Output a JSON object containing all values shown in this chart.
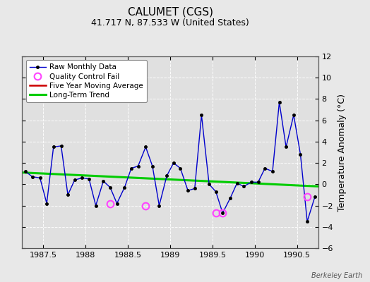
{
  "title": "CALUMET (CGS)",
  "subtitle": "41.717 N, 87.533 W (United States)",
  "watermark": "Berkeley Earth",
  "ylabel": "Temperature Anomaly (°C)",
  "xlim": [
    1987.25,
    1990.75
  ],
  "ylim": [
    -6,
    12
  ],
  "yticks": [
    -6,
    -4,
    -2,
    0,
    2,
    4,
    6,
    8,
    10,
    12
  ],
  "xticks": [
    1987.5,
    1988.0,
    1988.5,
    1989.0,
    1989.5,
    1990.0,
    1990.5
  ],
  "background_color": "#e8e8e8",
  "plot_bg_color": "#e0e0e0",
  "raw_x": [
    1987.29,
    1987.37,
    1987.46,
    1987.54,
    1987.62,
    1987.71,
    1987.79,
    1987.87,
    1987.96,
    1988.04,
    1988.12,
    1988.21,
    1988.29,
    1988.37,
    1988.46,
    1988.54,
    1988.62,
    1988.71,
    1988.79,
    1988.87,
    1988.96,
    1989.04,
    1989.12,
    1989.21,
    1989.29,
    1989.37,
    1989.46,
    1989.54,
    1989.62,
    1989.71,
    1989.79,
    1989.87,
    1989.96,
    1990.04,
    1990.12,
    1990.21,
    1990.29,
    1990.37,
    1990.46,
    1990.54,
    1990.62,
    1990.71
  ],
  "raw_y": [
    1.2,
    0.7,
    0.6,
    -1.8,
    3.5,
    3.6,
    -1.0,
    0.4,
    0.6,
    0.5,
    -2.0,
    0.3,
    -0.3,
    -1.8,
    -0.3,
    1.5,
    1.7,
    3.5,
    1.7,
    -2.0,
    0.8,
    2.0,
    1.5,
    -0.6,
    -0.4,
    6.5,
    0.0,
    -0.7,
    -2.7,
    -1.3,
    0.1,
    -0.2,
    0.2,
    0.2,
    1.5,
    1.2,
    7.7,
    3.5,
    6.5,
    2.8,
    -3.5,
    -1.2
  ],
  "qc_fail_x": [
    1988.29,
    1988.71,
    1989.54,
    1989.62,
    1990.62
  ],
  "qc_fail_y": [
    -1.8,
    -2.0,
    -2.7,
    -2.7,
    -1.2
  ],
  "trend_x": [
    1987.25,
    1990.75
  ],
  "trend_y": [
    1.1,
    -0.2
  ],
  "raw_color": "#0000cc",
  "raw_marker_color": "#000000",
  "qc_color": "#ff44ff",
  "trend_color": "#00cc00",
  "mavg_color": "#cc0000",
  "legend_loc": "upper left",
  "title_fontsize": 11,
  "subtitle_fontsize": 9,
  "tick_fontsize": 8,
  "ylabel_fontsize": 9
}
